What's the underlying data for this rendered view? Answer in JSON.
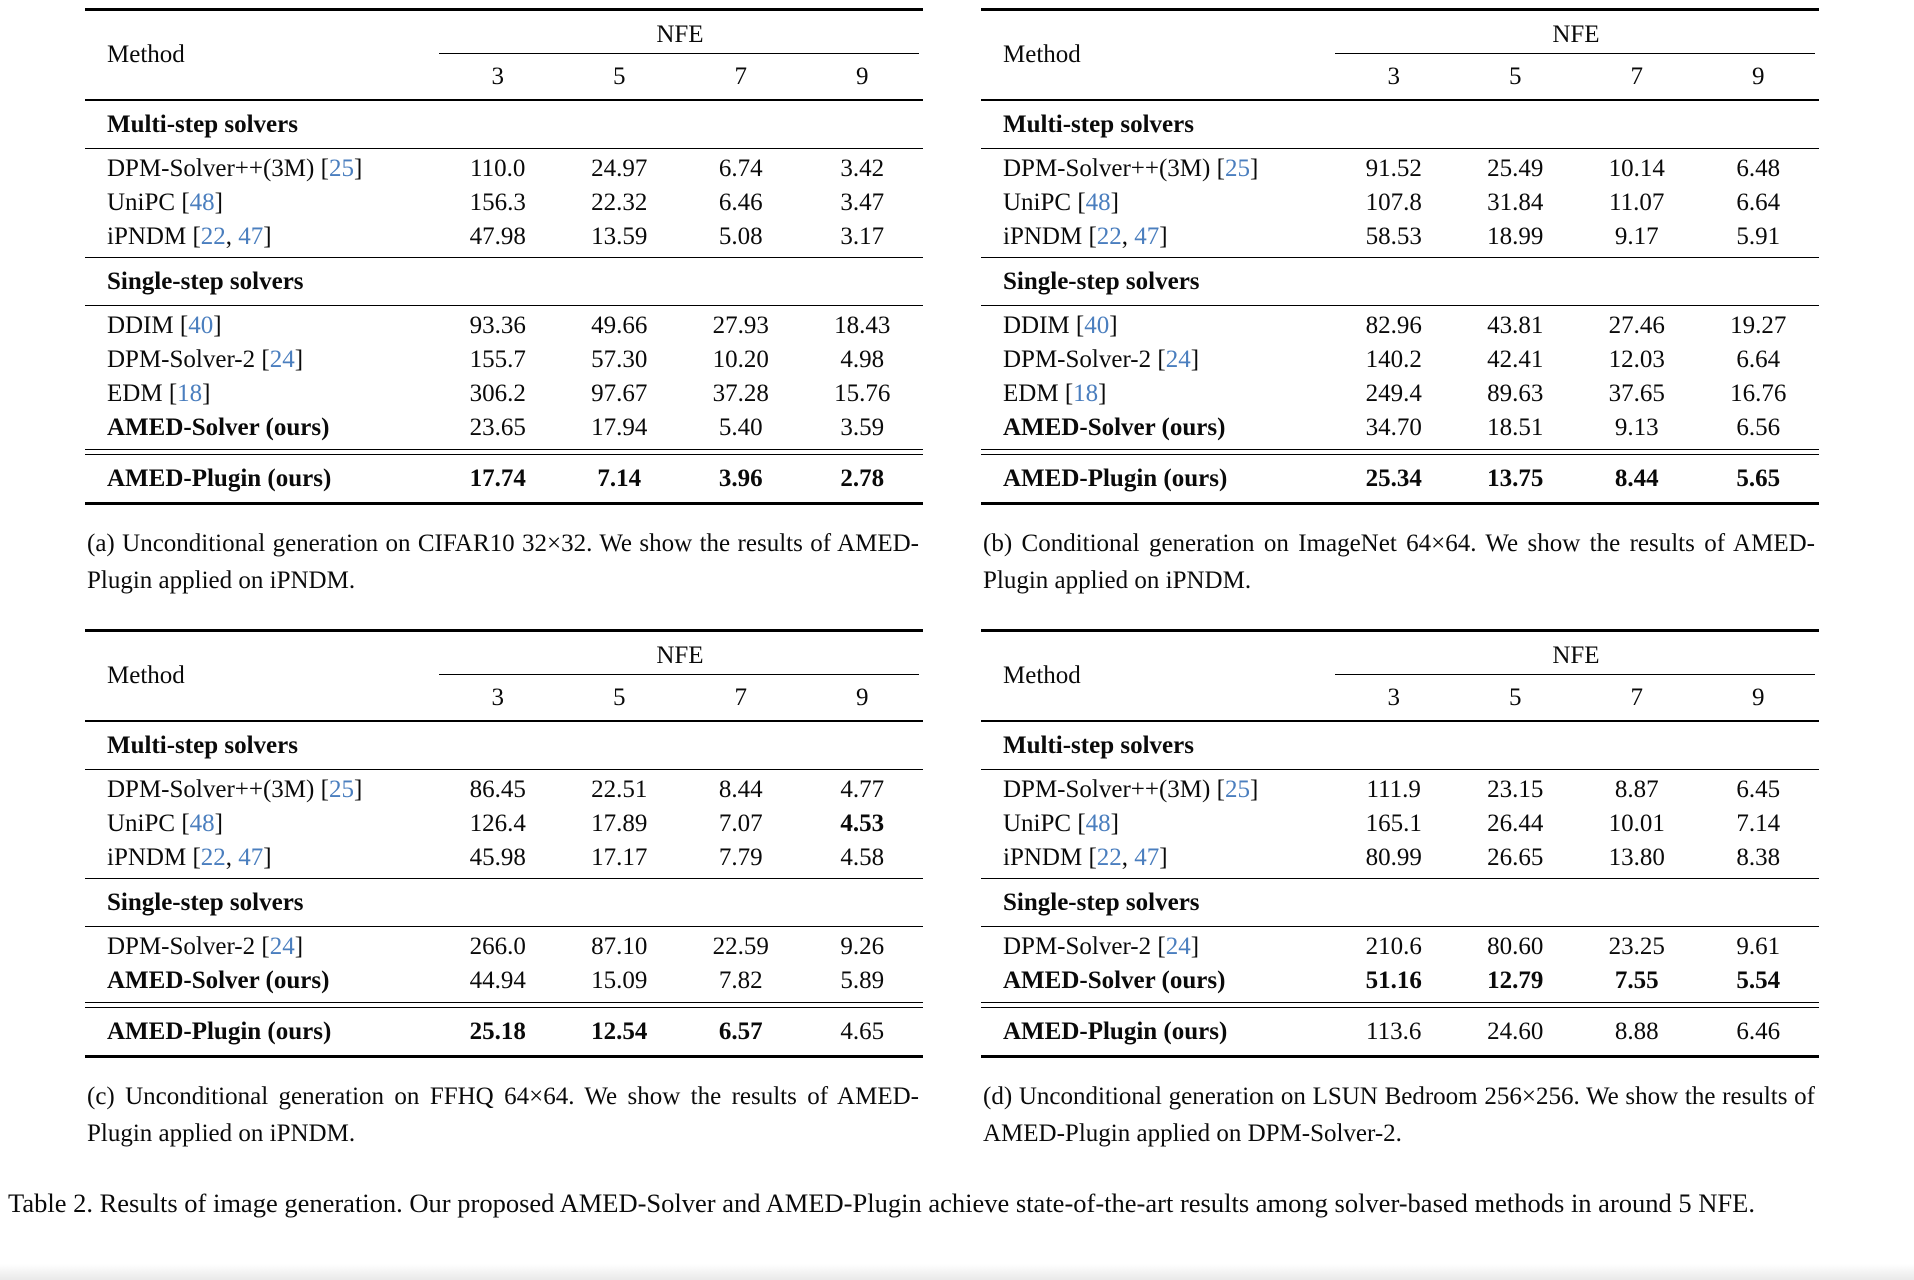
{
  "colors": {
    "citation_link": "#4a7ebe",
    "text": "#0a0a0a",
    "background": "#ffffff"
  },
  "main_caption": "Table 2. Results of image generation. Our proposed AMED-Solver and AMED-Plugin achieve state-of-the-art results among solver-based methods in around 5 NFE.",
  "tables": [
    {
      "method_header": "Method",
      "group_header": "NFE",
      "nfe_cols": [
        "3",
        "5",
        "7",
        "9"
      ],
      "sections": [
        {
          "title": "Multi-step solvers",
          "rows": [
            {
              "method": "DPM-Solver++(3M)",
              "cites": [
                "25"
              ],
              "bold_method": false,
              "values": [
                "110.0",
                "24.97",
                "6.74",
                "3.42"
              ],
              "bold_values": [
                false,
                false,
                false,
                false
              ]
            },
            {
              "method": "UniPC",
              "cites": [
                "48"
              ],
              "bold_method": false,
              "values": [
                "156.3",
                "22.32",
                "6.46",
                "3.47"
              ],
              "bold_values": [
                false,
                false,
                false,
                false
              ]
            },
            {
              "method": "iPNDM",
              "cites": [
                "22",
                "47"
              ],
              "bold_method": false,
              "values": [
                "47.98",
                "13.59",
                "5.08",
                "3.17"
              ],
              "bold_values": [
                false,
                false,
                false,
                false
              ]
            }
          ]
        },
        {
          "title": "Single-step solvers",
          "rows": [
            {
              "method": "DDIM",
              "cites": [
                "40"
              ],
              "bold_method": false,
              "values": [
                "93.36",
                "49.66",
                "27.93",
                "18.43"
              ],
              "bold_values": [
                false,
                false,
                false,
                false
              ]
            },
            {
              "method": "DPM-Solver-2",
              "cites": [
                "24"
              ],
              "bold_method": false,
              "values": [
                "155.7",
                "57.30",
                "10.20",
                "4.98"
              ],
              "bold_values": [
                false,
                false,
                false,
                false
              ]
            },
            {
              "method": "EDM",
              "cites": [
                "18"
              ],
              "bold_method": false,
              "values": [
                "306.2",
                "97.67",
                "37.28",
                "15.76"
              ],
              "bold_values": [
                false,
                false,
                false,
                false
              ]
            },
            {
              "method": "AMED-Solver (ours)",
              "cites": [],
              "bold_method": true,
              "values": [
                "23.65",
                "17.94",
                "5.40",
                "3.59"
              ],
              "bold_values": [
                false,
                false,
                false,
                false
              ]
            }
          ]
        }
      ],
      "plugin_row": {
        "method": "AMED-Plugin (ours)",
        "cites": [],
        "bold_method": true,
        "values": [
          "17.74",
          "7.14",
          "3.96",
          "2.78"
        ],
        "bold_values": [
          true,
          true,
          true,
          true
        ]
      },
      "caption": "(a) Unconditional generation on CIFAR10 32×32. We show the results of AMED-Plugin applied on iPNDM."
    },
    {
      "method_header": "Method",
      "group_header": "NFE",
      "nfe_cols": [
        "3",
        "5",
        "7",
        "9"
      ],
      "sections": [
        {
          "title": "Multi-step solvers",
          "rows": [
            {
              "method": "DPM-Solver++(3M)",
              "cites": [
                "25"
              ],
              "bold_method": false,
              "values": [
                "91.52",
                "25.49",
                "10.14",
                "6.48"
              ],
              "bold_values": [
                false,
                false,
                false,
                false
              ]
            },
            {
              "method": "UniPC",
              "cites": [
                "48"
              ],
              "bold_method": false,
              "values": [
                "107.8",
                "31.84",
                "11.07",
                "6.64"
              ],
              "bold_values": [
                false,
                false,
                false,
                false
              ]
            },
            {
              "method": "iPNDM",
              "cites": [
                "22",
                "47"
              ],
              "bold_method": false,
              "values": [
                "58.53",
                "18.99",
                "9.17",
                "5.91"
              ],
              "bold_values": [
                false,
                false,
                false,
                false
              ]
            }
          ]
        },
        {
          "title": "Single-step solvers",
          "rows": [
            {
              "method": "DDIM",
              "cites": [
                "40"
              ],
              "bold_method": false,
              "values": [
                "82.96",
                "43.81",
                "27.46",
                "19.27"
              ],
              "bold_values": [
                false,
                false,
                false,
                false
              ]
            },
            {
              "method": "DPM-Solver-2",
              "cites": [
                "24"
              ],
              "bold_method": false,
              "values": [
                "140.2",
                "42.41",
                "12.03",
                "6.64"
              ],
              "bold_values": [
                false,
                false,
                false,
                false
              ]
            },
            {
              "method": "EDM",
              "cites": [
                "18"
              ],
              "bold_method": false,
              "values": [
                "249.4",
                "89.63",
                "37.65",
                "16.76"
              ],
              "bold_values": [
                false,
                false,
                false,
                false
              ]
            },
            {
              "method": "AMED-Solver (ours)",
              "cites": [],
              "bold_method": true,
              "values": [
                "34.70",
                "18.51",
                "9.13",
                "6.56"
              ],
              "bold_values": [
                false,
                false,
                false,
                false
              ]
            }
          ]
        }
      ],
      "plugin_row": {
        "method": "AMED-Plugin (ours)",
        "cites": [],
        "bold_method": true,
        "values": [
          "25.34",
          "13.75",
          "8.44",
          "5.65"
        ],
        "bold_values": [
          true,
          true,
          true,
          true
        ]
      },
      "caption": "(b) Conditional generation on ImageNet 64×64. We show the results of AMED-Plugin applied on iPNDM."
    },
    {
      "method_header": "Method",
      "group_header": "NFE",
      "nfe_cols": [
        "3",
        "5",
        "7",
        "9"
      ],
      "sections": [
        {
          "title": "Multi-step solvers",
          "rows": [
            {
              "method": "DPM-Solver++(3M)",
              "cites": [
                "25"
              ],
              "bold_method": false,
              "values": [
                "86.45",
                "22.51",
                "8.44",
                "4.77"
              ],
              "bold_values": [
                false,
                false,
                false,
                false
              ]
            },
            {
              "method": "UniPC",
              "cites": [
                "48"
              ],
              "bold_method": false,
              "values": [
                "126.4",
                "17.89",
                "7.07",
                "4.53"
              ],
              "bold_values": [
                false,
                false,
                false,
                true
              ]
            },
            {
              "method": "iPNDM",
              "cites": [
                "22",
                "47"
              ],
              "bold_method": false,
              "values": [
                "45.98",
                "17.17",
                "7.79",
                "4.58"
              ],
              "bold_values": [
                false,
                false,
                false,
                false
              ]
            }
          ]
        },
        {
          "title": "Single-step solvers",
          "rows": [
            {
              "method": "DPM-Solver-2",
              "cites": [
                "24"
              ],
              "bold_method": false,
              "values": [
                "266.0",
                "87.10",
                "22.59",
                "9.26"
              ],
              "bold_values": [
                false,
                false,
                false,
                false
              ]
            },
            {
              "method": "AMED-Solver (ours)",
              "cites": [],
              "bold_method": true,
              "values": [
                "44.94",
                "15.09",
                "7.82",
                "5.89"
              ],
              "bold_values": [
                false,
                false,
                false,
                false
              ]
            }
          ]
        }
      ],
      "plugin_row": {
        "method": "AMED-Plugin (ours)",
        "cites": [],
        "bold_method": true,
        "values": [
          "25.18",
          "12.54",
          "6.57",
          "4.65"
        ],
        "bold_values": [
          true,
          true,
          true,
          false
        ]
      },
      "caption": "(c) Unconditional generation on FFHQ 64×64. We show the results of AMED-Plugin applied on iPNDM."
    },
    {
      "method_header": "Method",
      "group_header": "NFE",
      "nfe_cols": [
        "3",
        "5",
        "7",
        "9"
      ],
      "sections": [
        {
          "title": "Multi-step solvers",
          "rows": [
            {
              "method": "DPM-Solver++(3M)",
              "cites": [
                "25"
              ],
              "bold_method": false,
              "values": [
                "111.9",
                "23.15",
                "8.87",
                "6.45"
              ],
              "bold_values": [
                false,
                false,
                false,
                false
              ]
            },
            {
              "method": "UniPC",
              "cites": [
                "48"
              ],
              "bold_method": false,
              "values": [
                "165.1",
                "26.44",
                "10.01",
                "7.14"
              ],
              "bold_values": [
                false,
                false,
                false,
                false
              ]
            },
            {
              "method": "iPNDM",
              "cites": [
                "22",
                "47"
              ],
              "bold_method": false,
              "values": [
                "80.99",
                "26.65",
                "13.80",
                "8.38"
              ],
              "bold_values": [
                false,
                false,
                false,
                false
              ]
            }
          ]
        },
        {
          "title": "Single-step solvers",
          "rows": [
            {
              "method": "DPM-Solver-2",
              "cites": [
                "24"
              ],
              "bold_method": false,
              "values": [
                "210.6",
                "80.60",
                "23.25",
                "9.61"
              ],
              "bold_values": [
                false,
                false,
                false,
                false
              ]
            },
            {
              "method": "AMED-Solver (ours)",
              "cites": [],
              "bold_method": true,
              "values": [
                "51.16",
                "12.79",
                "7.55",
                "5.54"
              ],
              "bold_values": [
                true,
                true,
                true,
                true
              ]
            }
          ]
        }
      ],
      "plugin_row": {
        "method": "AMED-Plugin (ours)",
        "cites": [],
        "bold_method": true,
        "values": [
          "113.6",
          "24.60",
          "8.88",
          "6.46"
        ],
        "bold_values": [
          false,
          false,
          false,
          false
        ]
      },
      "caption": "(d) Unconditional generation on LSUN Bedroom 256×256. We show the results of AMED-Plugin applied on DPM-Solver-2."
    }
  ]
}
